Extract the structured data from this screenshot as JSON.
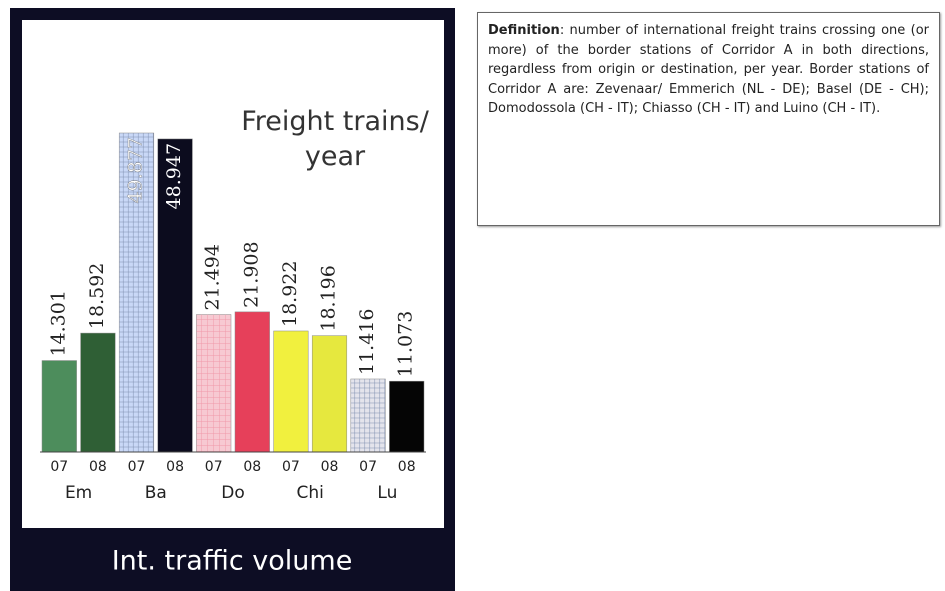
{
  "chart_data": {
    "type": "bar",
    "title": "Freight trains/ year",
    "footer": "Int. traffic volume",
    "categories": [
      "07",
      "08",
      "07",
      "08",
      "07",
      "08",
      "07",
      "08",
      "07",
      "08"
    ],
    "groups": [
      "Em",
      "Ba",
      "Do",
      "Chi",
      "Lu"
    ],
    "values": [
      14301,
      18592,
      49877,
      48947,
      21494,
      21908,
      18922,
      18196,
      11416,
      11073
    ],
    "value_labels": [
      "14.301",
      "18.592",
      "49.877",
      "48.947",
      "21.494",
      "21.908",
      "18.922",
      "18.196",
      "11.416",
      "11.073"
    ],
    "colors": [
      "#4d8d5c",
      "#2f5f35",
      "#c9d8f7",
      "#0c0c1e",
      "#f7c9d2",
      "#e6405a",
      "#f1f03e",
      "#e6e83e",
      "#e4e4ec",
      "#050505"
    ]
  },
  "definition": {
    "label": "Definition",
    "text": ": number of international freight trains crossing one (or more) of the border stations of Corridor A in both directions, regardless from origin or destination, per year. Border stations of Corridor A are: Zevenaar/ Emmerich (NL - DE); Basel (DE - CH); Domodossola (CH - IT); Chiasso (CH - IT) and Luino (CH - IT)."
  }
}
